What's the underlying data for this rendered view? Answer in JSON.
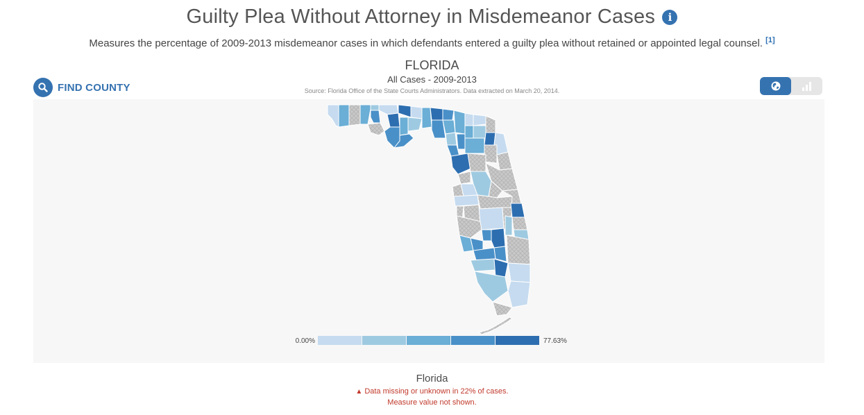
{
  "header": {
    "title": "Guilty Plea Without Attorney in Misdemeanor Cases",
    "info_icon": "info-icon",
    "subtitle": "Measures the percentage of 2009-2013 misdemeanor cases in which defendants entered a guilty plea without retained or appointed legal counsel.",
    "footnote": "[1]"
  },
  "toolbar": {
    "find_county_label": "FIND COUNTY",
    "search_icon": "search-icon",
    "map_view_icon": "globe-icon",
    "chart_view_icon": "bar-chart-icon",
    "active_view": "map"
  },
  "map": {
    "state": "FLORIDA",
    "cases": "All Cases - 2009-2013",
    "source": "Source: Florida Office of the State Courts Administrators. Data extracted on March 20, 2014.",
    "missing_pattern": "crosshatch-gray"
  },
  "legend": {
    "min": "0.00%",
    "max": "77.63%",
    "colors": [
      "#c6dbef",
      "#9ecae1",
      "#6baed6",
      "#4a90c8",
      "#2d6eb0"
    ]
  },
  "footer": {
    "name": "Florida",
    "warning": "Data missing or unknown in 22% of cases.",
    "note": "Measure value not shown."
  }
}
